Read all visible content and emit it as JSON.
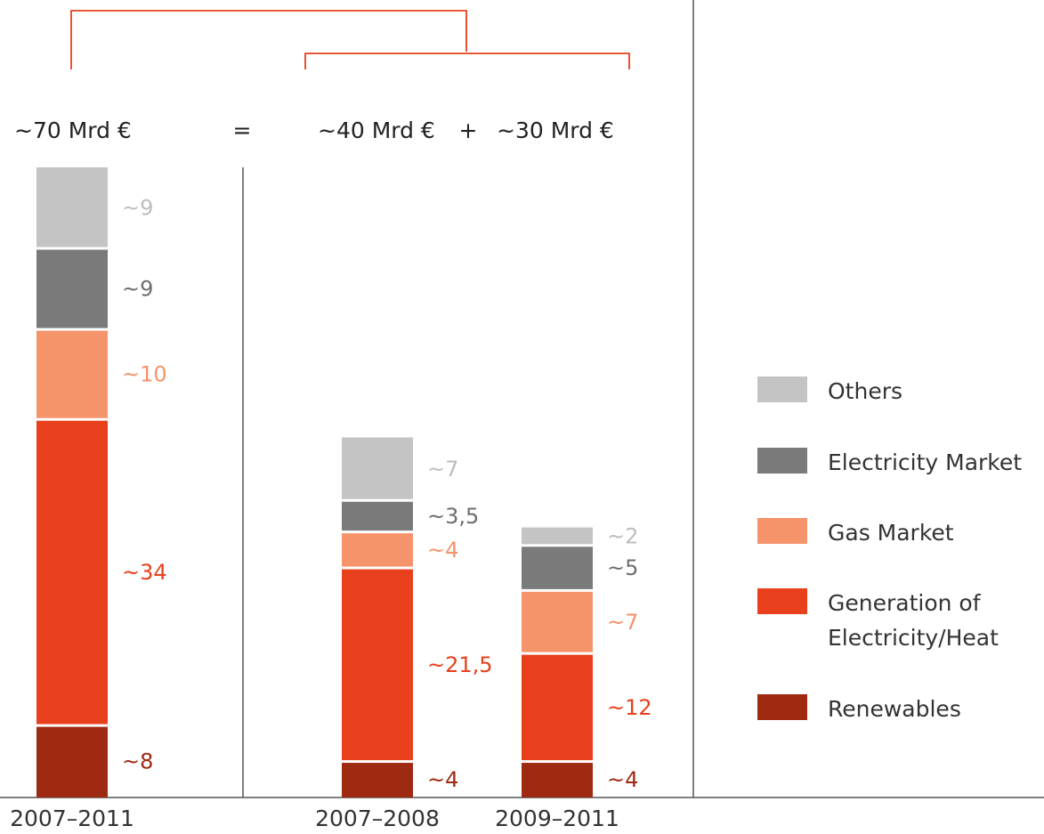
{
  "chart_data": {
    "type": "bar",
    "stacked": true,
    "categories": [
      "2007–2011",
      "2007–2008",
      "2009–2011"
    ],
    "totals": [
      "~70 Mrd €",
      "~40 Mrd €",
      "~30 Mrd €"
    ],
    "equation_symbols": [
      "=",
      "+"
    ],
    "series": [
      {
        "name": "Renewables",
        "color": "#9e2a12",
        "values": [
          8,
          4,
          4
        ],
        "labels": [
          "~8",
          "~4",
          "~4"
        ],
        "label_color": "#9e2a12"
      },
      {
        "name": "Generation of Electricity/Heat",
        "color": "#e8401c",
        "values": [
          34,
          21.5,
          12
        ],
        "labels": [
          "~34",
          "~21,5",
          "~12"
        ],
        "label_color": "#e8401c"
      },
      {
        "name": "Gas Market",
        "color": "#f5936a",
        "values": [
          10,
          4,
          7
        ],
        "labels": [
          "~10",
          "~4",
          "~7"
        ],
        "label_color": "#f5936a"
      },
      {
        "name": "Electricity Market",
        "color": "#7a7a7a",
        "values": [
          9,
          3.5,
          5
        ],
        "labels": [
          "~9",
          "~3,5",
          "~5"
        ],
        "label_color": "#6e6e6e"
      },
      {
        "name": "Others",
        "color": "#c4c4c4",
        "values": [
          9,
          7,
          2
        ],
        "labels": [
          "~9",
          "~7",
          "~2"
        ],
        "label_color": "#bdbdbd"
      }
    ],
    "legend": {
      "position": "right",
      "items": [
        {
          "lines": [
            "Others"
          ],
          "color": "#c4c4c4"
        },
        {
          "lines": [
            "Electricity Market"
          ],
          "color": "#7a7a7a"
        },
        {
          "lines": [
            "Gas Market"
          ],
          "color": "#f5936a"
        },
        {
          "lines": [
            "Generation of",
            "Electricity/Heat"
          ],
          "color": "#e8401c"
        },
        {
          "lines": [
            "Renewables"
          ],
          "color": "#9e2a12"
        }
      ]
    },
    "bracket_color": "#e8401c",
    "ylim": [
      0,
      70
    ],
    "grid": false
  }
}
